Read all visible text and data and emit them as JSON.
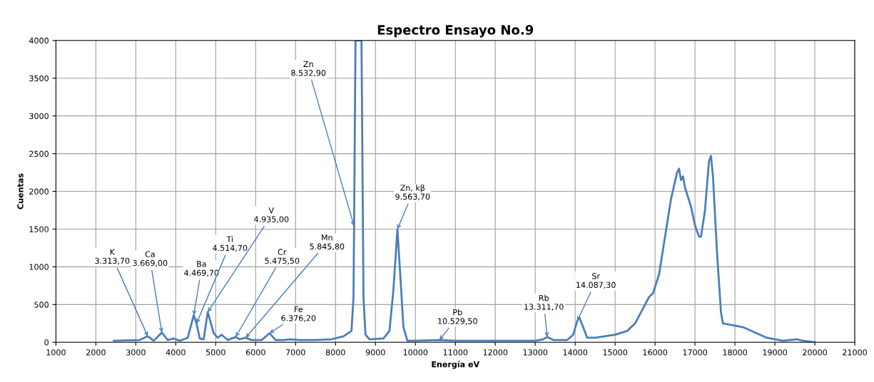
{
  "chart_data": {
    "type": "line",
    "title": "Espectro Ensayo No.9",
    "xlabel": "Energía eV",
    "ylabel": "Cuentas",
    "xlim": [
      1000,
      21000
    ],
    "xticks": [
      1000,
      2000,
      3000,
      4000,
      5000,
      6000,
      7000,
      8000,
      9000,
      10000,
      11000,
      12000,
      13000,
      14000,
      15000,
      16000,
      17000,
      18000,
      19000,
      20000,
      21000
    ],
    "ylim": [
      0,
      4000
    ],
    "yticks": [
      0,
      500,
      1000,
      1500,
      2000,
      2500,
      3000,
      3500,
      4000
    ],
    "grid": true,
    "marker": "none",
    "line_style": "solid",
    "series": [
      {
        "color": "#4a7ebb",
        "x": [
          2450,
          3100,
          3300,
          3450,
          3650,
          3800,
          3950,
          4100,
          4300,
          4450,
          4520,
          4600,
          4700,
          4800,
          4950,
          5050,
          5150,
          5300,
          5500,
          5600,
          5750,
          5900,
          6150,
          6350,
          6500,
          6700,
          6850,
          7100,
          7500,
          7900,
          8200,
          8400,
          8450,
          8465,
          8500,
          8650,
          8700,
          8750,
          8850,
          9200,
          9350,
          9450,
          9550,
          9620,
          9700,
          9800,
          10000,
          10600,
          11000,
          12000,
          13000,
          13200,
          13300,
          13450,
          13800,
          13950,
          14050,
          14100,
          14200,
          14300,
          14500,
          15000,
          15300,
          15500,
          15700,
          15850,
          15950,
          16100,
          16250,
          16400,
          16550,
          16600,
          16650,
          16700,
          16750,
          16900,
          17000,
          17100,
          17150,
          17250,
          17350,
          17400,
          17450,
          17550,
          17650,
          17700,
          18000,
          18200,
          18500,
          18800,
          19200,
          19550,
          19700,
          20000
        ],
        "values": [
          20,
          30,
          80,
          20,
          130,
          30,
          50,
          20,
          60,
          360,
          250,
          50,
          40,
          400,
          120,
          60,
          100,
          30,
          70,
          40,
          60,
          30,
          30,
          120,
          30,
          30,
          40,
          30,
          30,
          40,
          80,
          150,
          600,
          1540,
          4000,
          4000,
          600,
          100,
          40,
          50,
          150,
          700,
          1500,
          900,
          200,
          20,
          20,
          30,
          20,
          20,
          20,
          40,
          70,
          30,
          30,
          100,
          280,
          330,
          200,
          60,
          60,
          100,
          150,
          250,
          450,
          600,
          650,
          900,
          1400,
          1900,
          2250,
          2300,
          2150,
          2200,
          2050,
          1800,
          1550,
          1400,
          1400,
          1750,
          2400,
          2470,
          2200,
          1200,
          400,
          250,
          220,
          200,
          130,
          60,
          20,
          40,
          20,
          0
        ]
      }
    ],
    "annotations": [
      {
        "text": "K\n3.313,70",
        "x": 3300,
        "y": 80
      },
      {
        "text": "Ca\n3.669,00",
        "x": 3650,
        "y": 130
      },
      {
        "text": "Ba\n4.469,70",
        "x": 4450,
        "y": 360
      },
      {
        "text": "Ti\n4.514,70",
        "x": 4520,
        "y": 250
      },
      {
        "text": "V\n4.935,00",
        "x": 4800,
        "y": 400
      },
      {
        "text": "Cr\n5.475,50",
        "x": 5500,
        "y": 70
      },
      {
        "text": "Mn\n5.845,80",
        "x": 5750,
        "y": 60
      },
      {
        "text": "Fe\n6.376,20",
        "x": 6350,
        "y": 120
      },
      {
        "text": "Zn\n8.532,90",
        "x": 8465,
        "y": 1540
      },
      {
        "text": "Zn, kβ\n9.563,70",
        "x": 9550,
        "y": 1500
      },
      {
        "text": "Pb\n10.529,50",
        "x": 10600,
        "y": 30
      },
      {
        "text": "Rb\n13.311,70",
        "x": 13300,
        "y": 70
      },
      {
        "text": "Sr\n14.087,30",
        "x": 14050,
        "y": 280
      }
    ]
  }
}
